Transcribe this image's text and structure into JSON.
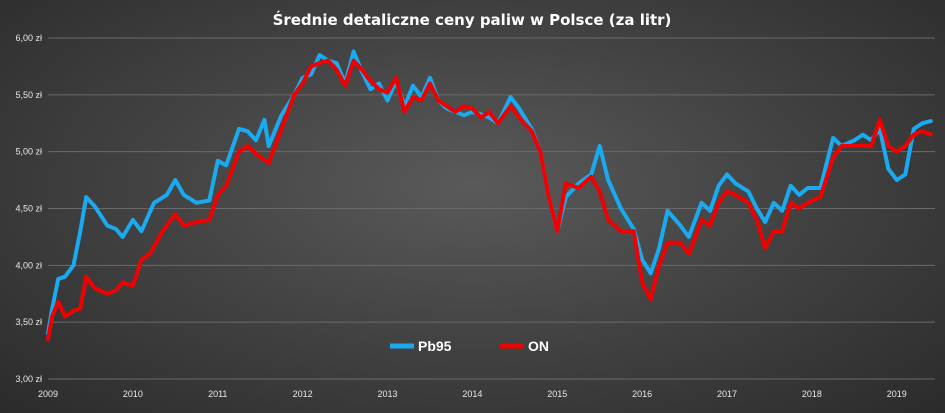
{
  "chart_data": {
    "type": "line",
    "title": "Średnie detaliczne ceny paliw w Polsce (za litr)",
    "xlabel": "",
    "ylabel": "",
    "ylim": [
      3.0,
      6.0
    ],
    "xlim": [
      2009.0,
      2019.45
    ],
    "grid": true,
    "legend_position": "bottom-center",
    "y_ticks": [
      "3,00 zł",
      "3,50 zł",
      "4,00 zł",
      "4,50 zł",
      "5,00 zł",
      "5,50 zł",
      "6,00 zł"
    ],
    "x_ticks": [
      "2009",
      "2010",
      "2011",
      "2012",
      "2013",
      "2014",
      "2015",
      "2016",
      "2017",
      "2018",
      "2019"
    ],
    "series": [
      {
        "name": "Pb95",
        "color": "#19aaf0",
        "points": [
          [
            2009.0,
            3.4
          ],
          [
            2009.05,
            3.62
          ],
          [
            2009.12,
            3.88
          ],
          [
            2009.2,
            3.9
          ],
          [
            2009.3,
            4.0
          ],
          [
            2009.38,
            4.3
          ],
          [
            2009.45,
            4.6
          ],
          [
            2009.55,
            4.52
          ],
          [
            2009.7,
            4.35
          ],
          [
            2009.8,
            4.32
          ],
          [
            2009.88,
            4.25
          ],
          [
            2010.0,
            4.4
          ],
          [
            2010.1,
            4.3
          ],
          [
            2010.25,
            4.55
          ],
          [
            2010.4,
            4.62
          ],
          [
            2010.5,
            4.75
          ],
          [
            2010.6,
            4.62
          ],
          [
            2010.75,
            4.55
          ],
          [
            2010.9,
            4.57
          ],
          [
            2011.0,
            4.92
          ],
          [
            2011.1,
            4.88
          ],
          [
            2011.25,
            5.2
          ],
          [
            2011.35,
            5.18
          ],
          [
            2011.45,
            5.1
          ],
          [
            2011.55,
            5.28
          ],
          [
            2011.6,
            5.05
          ],
          [
            2011.75,
            5.32
          ],
          [
            2011.9,
            5.5
          ],
          [
            2012.0,
            5.65
          ],
          [
            2012.1,
            5.68
          ],
          [
            2012.2,
            5.85
          ],
          [
            2012.3,
            5.8
          ],
          [
            2012.4,
            5.78
          ],
          [
            2012.5,
            5.6
          ],
          [
            2012.6,
            5.88
          ],
          [
            2012.7,
            5.7
          ],
          [
            2012.8,
            5.55
          ],
          [
            2012.9,
            5.6
          ],
          [
            2013.0,
            5.45
          ],
          [
            2013.1,
            5.62
          ],
          [
            2013.2,
            5.4
          ],
          [
            2013.3,
            5.58
          ],
          [
            2013.4,
            5.48
          ],
          [
            2013.5,
            5.65
          ],
          [
            2013.6,
            5.45
          ],
          [
            2013.7,
            5.38
          ],
          [
            2013.8,
            5.35
          ],
          [
            2013.9,
            5.32
          ],
          [
            2014.0,
            5.35
          ],
          [
            2014.1,
            5.33
          ],
          [
            2014.2,
            5.3
          ],
          [
            2014.3,
            5.25
          ],
          [
            2014.45,
            5.48
          ],
          [
            2014.55,
            5.38
          ],
          [
            2014.7,
            5.2
          ],
          [
            2014.8,
            5.0
          ],
          [
            2014.9,
            4.6
          ],
          [
            2015.0,
            4.3
          ],
          [
            2015.1,
            4.6
          ],
          [
            2015.25,
            4.72
          ],
          [
            2015.4,
            4.8
          ],
          [
            2015.5,
            5.05
          ],
          [
            2015.6,
            4.75
          ],
          [
            2015.75,
            4.5
          ],
          [
            2015.9,
            4.32
          ],
          [
            2016.0,
            4.05
          ],
          [
            2016.1,
            3.93
          ],
          [
            2016.2,
            4.15
          ],
          [
            2016.3,
            4.48
          ],
          [
            2016.45,
            4.35
          ],
          [
            2016.55,
            4.25
          ],
          [
            2016.7,
            4.55
          ],
          [
            2016.8,
            4.48
          ],
          [
            2016.9,
            4.7
          ],
          [
            2017.0,
            4.8
          ],
          [
            2017.1,
            4.72
          ],
          [
            2017.25,
            4.65
          ],
          [
            2017.35,
            4.5
          ],
          [
            2017.45,
            4.38
          ],
          [
            2017.55,
            4.55
          ],
          [
            2017.65,
            4.48
          ],
          [
            2017.75,
            4.7
          ],
          [
            2017.85,
            4.62
          ],
          [
            2017.95,
            4.68
          ],
          [
            2018.1,
            4.68
          ],
          [
            2018.25,
            5.12
          ],
          [
            2018.35,
            5.05
          ],
          [
            2018.5,
            5.1
          ],
          [
            2018.6,
            5.15
          ],
          [
            2018.7,
            5.1
          ],
          [
            2018.8,
            5.2
          ],
          [
            2018.9,
            4.85
          ],
          [
            2019.0,
            4.75
          ],
          [
            2019.1,
            4.8
          ],
          [
            2019.2,
            5.2
          ],
          [
            2019.3,
            5.25
          ],
          [
            2019.4,
            5.27
          ]
        ]
      },
      {
        "name": "ON",
        "color": "#f00000",
        "points": [
          [
            2009.0,
            3.35
          ],
          [
            2009.05,
            3.55
          ],
          [
            2009.12,
            3.68
          ],
          [
            2009.2,
            3.55
          ],
          [
            2009.3,
            3.6
          ],
          [
            2009.38,
            3.62
          ],
          [
            2009.45,
            3.9
          ],
          [
            2009.55,
            3.8
          ],
          [
            2009.7,
            3.75
          ],
          [
            2009.8,
            3.78
          ],
          [
            2009.88,
            3.85
          ],
          [
            2010.0,
            3.82
          ],
          [
            2010.1,
            4.05
          ],
          [
            2010.2,
            4.1
          ],
          [
            2010.35,
            4.3
          ],
          [
            2010.5,
            4.45
          ],
          [
            2010.6,
            4.35
          ],
          [
            2010.75,
            4.38
          ],
          [
            2010.9,
            4.4
          ],
          [
            2011.0,
            4.62
          ],
          [
            2011.1,
            4.7
          ],
          [
            2011.25,
            5.0
          ],
          [
            2011.35,
            5.05
          ],
          [
            2011.45,
            4.98
          ],
          [
            2011.6,
            4.9
          ],
          [
            2011.75,
            5.2
          ],
          [
            2011.9,
            5.5
          ],
          [
            2012.0,
            5.6
          ],
          [
            2012.1,
            5.75
          ],
          [
            2012.2,
            5.78
          ],
          [
            2012.3,
            5.8
          ],
          [
            2012.4,
            5.72
          ],
          [
            2012.5,
            5.58
          ],
          [
            2012.6,
            5.8
          ],
          [
            2012.7,
            5.72
          ],
          [
            2012.8,
            5.62
          ],
          [
            2012.9,
            5.55
          ],
          [
            2013.0,
            5.52
          ],
          [
            2013.1,
            5.65
          ],
          [
            2013.2,
            5.35
          ],
          [
            2013.3,
            5.48
          ],
          [
            2013.4,
            5.45
          ],
          [
            2013.5,
            5.6
          ],
          [
            2013.6,
            5.45
          ],
          [
            2013.7,
            5.4
          ],
          [
            2013.8,
            5.35
          ],
          [
            2013.9,
            5.4
          ],
          [
            2014.0,
            5.38
          ],
          [
            2014.1,
            5.3
          ],
          [
            2014.2,
            5.35
          ],
          [
            2014.3,
            5.25
          ],
          [
            2014.45,
            5.4
          ],
          [
            2014.55,
            5.3
          ],
          [
            2014.7,
            5.18
          ],
          [
            2014.8,
            5.0
          ],
          [
            2014.9,
            4.6
          ],
          [
            2015.0,
            4.3
          ],
          [
            2015.1,
            4.72
          ],
          [
            2015.25,
            4.68
          ],
          [
            2015.4,
            4.78
          ],
          [
            2015.5,
            4.65
          ],
          [
            2015.6,
            4.4
          ],
          [
            2015.75,
            4.3
          ],
          [
            2015.9,
            4.3
          ],
          [
            2016.0,
            3.85
          ],
          [
            2016.1,
            3.7
          ],
          [
            2016.2,
            4.0
          ],
          [
            2016.3,
            4.2
          ],
          [
            2016.45,
            4.2
          ],
          [
            2016.55,
            4.1
          ],
          [
            2016.7,
            4.4
          ],
          [
            2016.8,
            4.35
          ],
          [
            2016.9,
            4.55
          ],
          [
            2017.0,
            4.65
          ],
          [
            2017.1,
            4.62
          ],
          [
            2017.25,
            4.55
          ],
          [
            2017.35,
            4.4
          ],
          [
            2017.45,
            4.15
          ],
          [
            2017.55,
            4.3
          ],
          [
            2017.65,
            4.3
          ],
          [
            2017.75,
            4.55
          ],
          [
            2017.85,
            4.5
          ],
          [
            2017.95,
            4.55
          ],
          [
            2018.1,
            4.6
          ],
          [
            2018.25,
            4.95
          ],
          [
            2018.35,
            5.05
          ],
          [
            2018.5,
            5.05
          ],
          [
            2018.6,
            5.05
          ],
          [
            2018.7,
            5.05
          ],
          [
            2018.8,
            5.28
          ],
          [
            2018.9,
            5.05
          ],
          [
            2019.0,
            5.0
          ],
          [
            2019.1,
            5.05
          ],
          [
            2019.2,
            5.15
          ],
          [
            2019.3,
            5.18
          ],
          [
            2019.4,
            5.15
          ]
        ]
      }
    ]
  }
}
